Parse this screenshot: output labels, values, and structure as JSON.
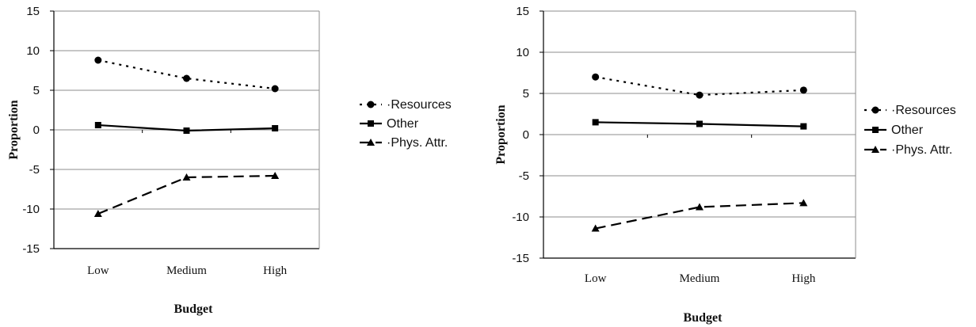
{
  "chart_data": [
    {
      "type": "line",
      "categories": [
        "Low",
        "Medium",
        "High"
      ],
      "xlabel": "Budget",
      "ylabel": "Proportion",
      "ylim": [
        -15,
        15
      ],
      "yticks": [
        -15,
        -10,
        -5,
        0,
        5,
        10,
        15
      ],
      "grid": true,
      "legend_position": "right",
      "series": [
        {
          "name": "Resources",
          "values": [
            8.8,
            6.5,
            5.2
          ],
          "marker": "circle",
          "dash": "dotted"
        },
        {
          "name": "Other",
          "values": [
            0.6,
            -0.1,
            0.2
          ],
          "marker": "square",
          "dash": "solid"
        },
        {
          "name": "Phys. Attr.",
          "values": [
            -10.6,
            -6.0,
            -5.8
          ],
          "marker": "triangle",
          "dash": "dashed"
        }
      ]
    },
    {
      "type": "line",
      "categories": [
        "Low",
        "Medium",
        "High"
      ],
      "xlabel": "Budget",
      "ylabel": "Proportion",
      "ylim": [
        -15,
        15
      ],
      "yticks": [
        -15,
        -10,
        -5,
        0,
        5,
        10,
        15
      ],
      "grid": true,
      "legend_position": "right",
      "series": [
        {
          "name": "Resources",
          "values": [
            7.0,
            4.8,
            5.4
          ],
          "marker": "circle",
          "dash": "dotted"
        },
        {
          "name": "Other",
          "values": [
            1.5,
            1.3,
            1.0
          ],
          "marker": "square",
          "dash": "solid"
        },
        {
          "name": "Phys. Attr.",
          "values": [
            -11.4,
            -8.8,
            -8.3
          ],
          "marker": "triangle",
          "dash": "dashed"
        }
      ]
    }
  ]
}
